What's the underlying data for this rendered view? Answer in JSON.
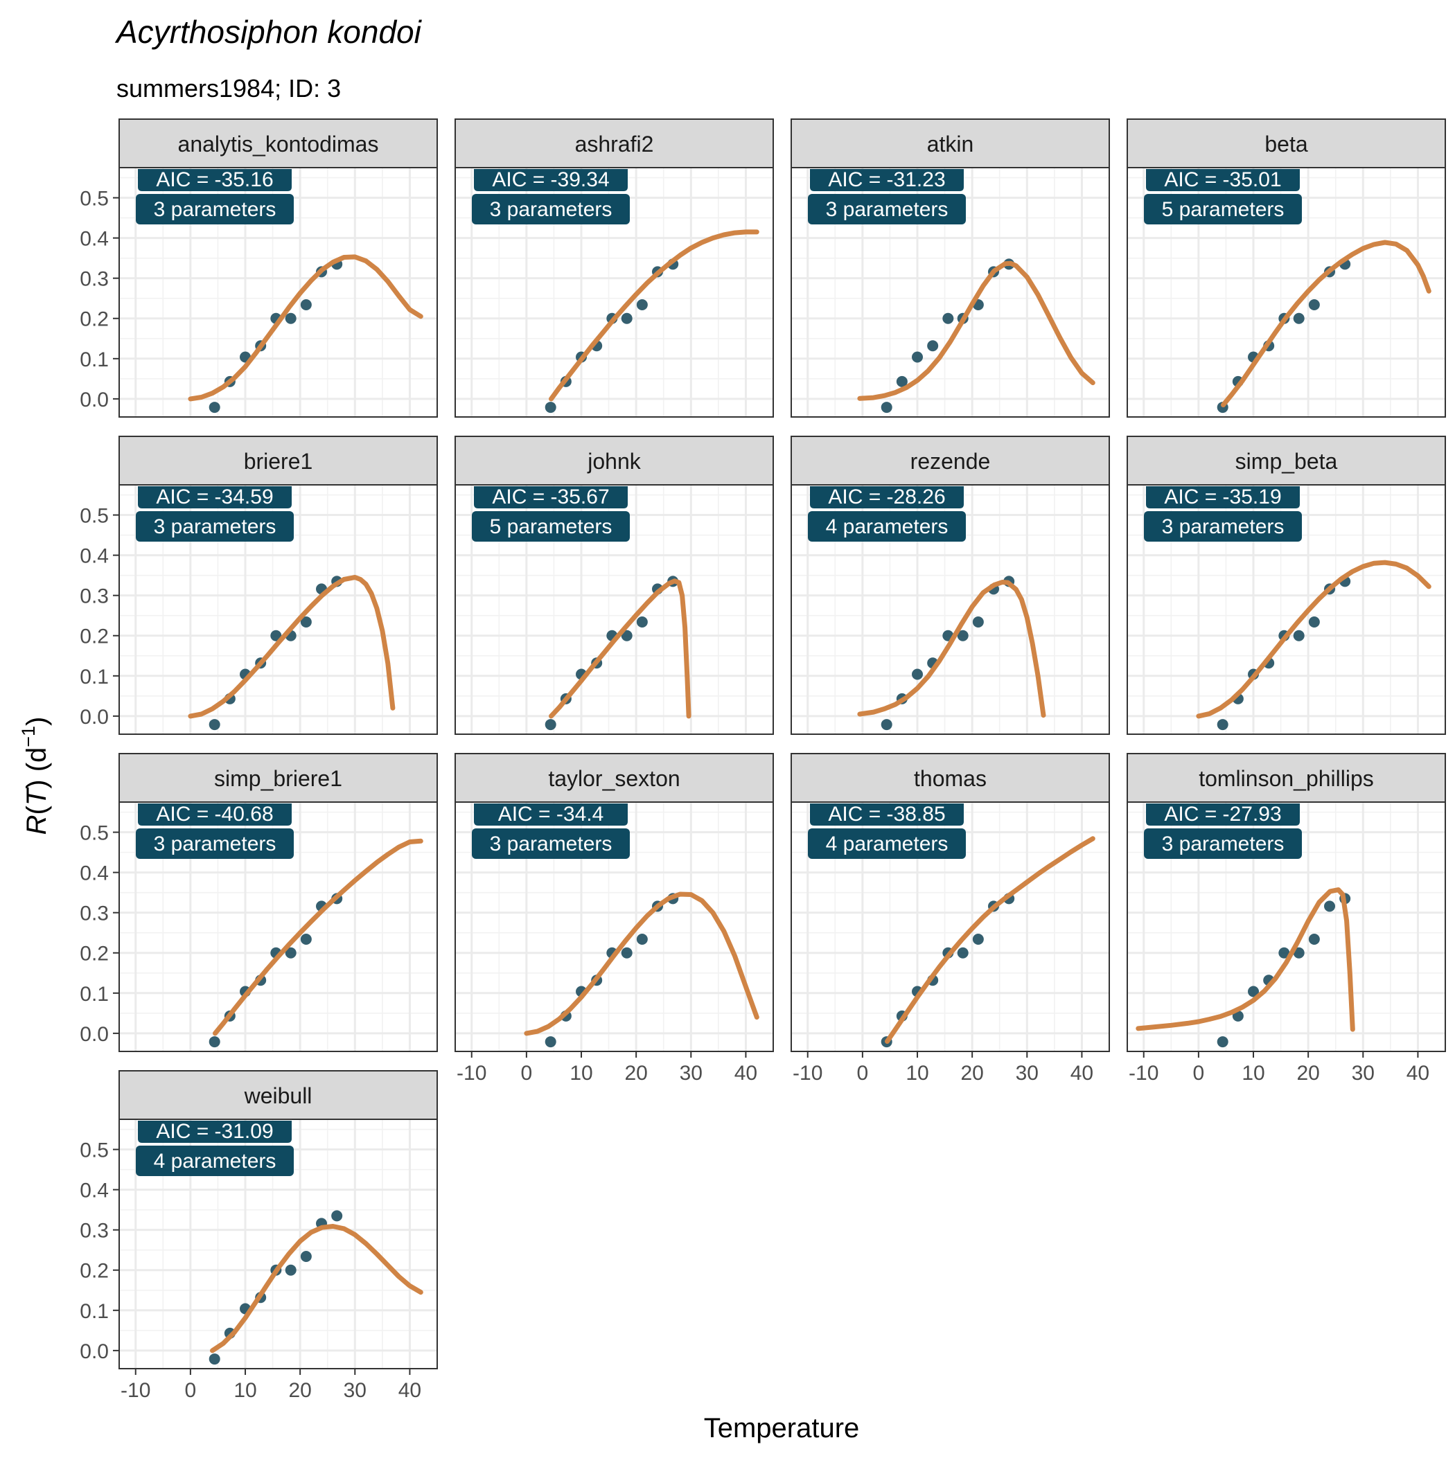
{
  "chart_data": {
    "type": "scatter",
    "title": "Acyrthosiphon kondoi",
    "subtitle": "summers1984; ID: 3",
    "xlabel": "Temperature",
    "ylabel_var": "R",
    "ylabel_arg": "T",
    "ylabel_unit": "d",
    "ylabel_exp": "−1",
    "xlim": [
      -13,
      45
    ],
    "ylim": [
      -0.045,
      0.575
    ],
    "x_ticks": [
      "-10",
      "0",
      "10",
      "20",
      "30",
      "40"
    ],
    "y_ticks": [
      "0.0",
      "0.1",
      "0.2",
      "0.3",
      "0.4",
      "0.5"
    ],
    "grid": true,
    "colors": {
      "point": "#1f4e5f",
      "curve": "#d08445",
      "label_bg": "#0f4a60",
      "strip_bg": "#d9d9d9"
    },
    "points": [
      {
        "x": 4.4,
        "y": -0.021
      },
      {
        "x": 7.2,
        "y": 0.043
      },
      {
        "x": 10.0,
        "y": 0.104
      },
      {
        "x": 12.8,
        "y": 0.132
      },
      {
        "x": 15.6,
        "y": 0.2
      },
      {
        "x": 18.3,
        "y": 0.2
      },
      {
        "x": 21.1,
        "y": 0.234
      },
      {
        "x": 23.9,
        "y": 0.316
      },
      {
        "x": 26.7,
        "y": 0.335
      }
    ],
    "panels": [
      {
        "name": "analytis_kontodimas",
        "aic": "AIC = -35.16",
        "params": "3 parameters",
        "curve": [
          [
            0,
            0
          ],
          [
            2,
            0.004
          ],
          [
            4,
            0.014
          ],
          [
            6,
            0.03
          ],
          [
            8,
            0.052
          ],
          [
            10,
            0.08
          ],
          [
            12,
            0.115
          ],
          [
            14,
            0.153
          ],
          [
            16,
            0.19
          ],
          [
            18,
            0.228
          ],
          [
            20,
            0.263
          ],
          [
            22,
            0.294
          ],
          [
            24,
            0.321
          ],
          [
            26,
            0.34
          ],
          [
            28,
            0.352
          ],
          [
            30,
            0.353
          ],
          [
            32,
            0.343
          ],
          [
            34,
            0.322
          ],
          [
            36,
            0.292
          ],
          [
            38,
            0.256
          ],
          [
            40,
            0.222
          ],
          [
            42,
            0.205
          ]
        ]
      },
      {
        "name": "ashrafi2",
        "aic": "AIC = -39.34",
        "params": "3 parameters",
        "curve": [
          [
            4.5,
            0.0
          ],
          [
            6,
            0.028
          ],
          [
            8,
            0.063
          ],
          [
            10,
            0.098
          ],
          [
            12,
            0.133
          ],
          [
            14,
            0.166
          ],
          [
            16,
            0.199
          ],
          [
            18,
            0.23
          ],
          [
            20,
            0.26
          ],
          [
            22,
            0.288
          ],
          [
            24,
            0.313
          ],
          [
            26,
            0.336
          ],
          [
            28,
            0.357
          ],
          [
            30,
            0.375
          ],
          [
            32,
            0.389
          ],
          [
            34,
            0.4
          ],
          [
            36,
            0.408
          ],
          [
            38,
            0.413
          ],
          [
            40,
            0.415
          ],
          [
            42,
            0.415
          ]
        ]
      },
      {
        "name": "atkin",
        "aic": "AIC = -31.23",
        "params": "3 parameters",
        "curve": [
          [
            -0.5,
            0.001
          ],
          [
            2,
            0.003
          ],
          [
            4,
            0.008
          ],
          [
            6,
            0.016
          ],
          [
            8,
            0.028
          ],
          [
            10,
            0.046
          ],
          [
            12,
            0.07
          ],
          [
            14,
            0.102
          ],
          [
            16,
            0.142
          ],
          [
            18,
            0.188
          ],
          [
            20,
            0.236
          ],
          [
            22,
            0.281
          ],
          [
            24,
            0.318
          ],
          [
            26,
            0.336
          ],
          [
            27,
            0.337
          ],
          [
            28,
            0.331
          ],
          [
            30,
            0.303
          ],
          [
            32,
            0.259
          ],
          [
            34,
            0.206
          ],
          [
            36,
            0.152
          ],
          [
            38,
            0.103
          ],
          [
            40,
            0.064
          ],
          [
            42,
            0.04
          ]
        ]
      },
      {
        "name": "beta",
        "aic": "AIC = -35.01",
        "params": "5 parameters",
        "curve": [
          [
            4.5,
            -0.015
          ],
          [
            6,
            0.01
          ],
          [
            8,
            0.045
          ],
          [
            10,
            0.085
          ],
          [
            12,
            0.125
          ],
          [
            14,
            0.165
          ],
          [
            16,
            0.203
          ],
          [
            18,
            0.237
          ],
          [
            20,
            0.268
          ],
          [
            22,
            0.296
          ],
          [
            24,
            0.32
          ],
          [
            26,
            0.341
          ],
          [
            28,
            0.359
          ],
          [
            30,
            0.374
          ],
          [
            32,
            0.384
          ],
          [
            34,
            0.389
          ],
          [
            36,
            0.385
          ],
          [
            38,
            0.369
          ],
          [
            40,
            0.333
          ],
          [
            41,
            0.305
          ],
          [
            42,
            0.268
          ]
        ]
      },
      {
        "name": "briere1",
        "aic": "AIC = -34.59",
        "params": "3 parameters",
        "curve": [
          [
            0,
            0
          ],
          [
            2,
            0.005
          ],
          [
            4,
            0.018
          ],
          [
            6,
            0.037
          ],
          [
            8,
            0.061
          ],
          [
            10,
            0.089
          ],
          [
            12,
            0.119
          ],
          [
            14,
            0.15
          ],
          [
            16,
            0.182
          ],
          [
            18,
            0.213
          ],
          [
            20,
            0.244
          ],
          [
            22,
            0.273
          ],
          [
            24,
            0.3
          ],
          [
            26,
            0.323
          ],
          [
            28,
            0.34
          ],
          [
            30,
            0.345
          ],
          [
            31,
            0.34
          ],
          [
            32,
            0.328
          ],
          [
            33,
            0.305
          ],
          [
            34,
            0.268
          ],
          [
            35,
            0.212
          ],
          [
            36,
            0.131
          ],
          [
            36.5,
            0.07
          ],
          [
            36.9,
            0.02
          ]
        ]
      },
      {
        "name": "johnk",
        "aic": "AIC = -35.67",
        "params": "5 parameters",
        "curve": [
          [
            4.5,
            0.0
          ],
          [
            6,
            0.022
          ],
          [
            8,
            0.055
          ],
          [
            10,
            0.088
          ],
          [
            12,
            0.122
          ],
          [
            14,
            0.155
          ],
          [
            16,
            0.188
          ],
          [
            18,
            0.22
          ],
          [
            20,
            0.251
          ],
          [
            22,
            0.281
          ],
          [
            24,
            0.309
          ],
          [
            26,
            0.33
          ],
          [
            27,
            0.336
          ],
          [
            27.8,
            0.332
          ],
          [
            28.4,
            0.3
          ],
          [
            28.9,
            0.22
          ],
          [
            29.3,
            0.1
          ],
          [
            29.6,
            0.0
          ]
        ]
      },
      {
        "name": "rezende",
        "aic": "AIC = -28.26",
        "params": "4 parameters",
        "curve": [
          [
            -0.5,
            0.005
          ],
          [
            2,
            0.01
          ],
          [
            4,
            0.018
          ],
          [
            6,
            0.029
          ],
          [
            8,
            0.046
          ],
          [
            10,
            0.069
          ],
          [
            12,
            0.099
          ],
          [
            14,
            0.137
          ],
          [
            16,
            0.181
          ],
          [
            18,
            0.228
          ],
          [
            20,
            0.272
          ],
          [
            22,
            0.307
          ],
          [
            24,
            0.326
          ],
          [
            25.5,
            0.333
          ],
          [
            26.5,
            0.332
          ],
          [
            28,
            0.315
          ],
          [
            29,
            0.29
          ],
          [
            30,
            0.245
          ],
          [
            31,
            0.18
          ],
          [
            32,
            0.1
          ],
          [
            33,
            0.002
          ]
        ]
      },
      {
        "name": "simp_beta",
        "aic": "AIC = -35.19",
        "params": "3 parameters",
        "curve": [
          [
            0,
            0
          ],
          [
            2,
            0.006
          ],
          [
            4,
            0.02
          ],
          [
            6,
            0.04
          ],
          [
            8,
            0.066
          ],
          [
            10,
            0.097
          ],
          [
            12,
            0.131
          ],
          [
            14,
            0.165
          ],
          [
            16,
            0.199
          ],
          [
            18,
            0.232
          ],
          [
            20,
            0.263
          ],
          [
            22,
            0.292
          ],
          [
            24,
            0.318
          ],
          [
            26,
            0.341
          ],
          [
            28,
            0.359
          ],
          [
            30,
            0.372
          ],
          [
            32,
            0.38
          ],
          [
            34,
            0.382
          ],
          [
            36,
            0.378
          ],
          [
            38,
            0.368
          ],
          [
            40,
            0.349
          ],
          [
            42,
            0.322
          ]
        ]
      },
      {
        "name": "simp_briere1",
        "aic": "AIC = -40.68",
        "params": "3 parameters",
        "curve": [
          [
            4.5,
            0.0
          ],
          [
            6,
            0.025
          ],
          [
            8,
            0.06
          ],
          [
            10,
            0.094
          ],
          [
            12,
            0.127
          ],
          [
            14,
            0.16
          ],
          [
            16,
            0.191
          ],
          [
            18,
            0.221
          ],
          [
            20,
            0.25
          ],
          [
            22,
            0.278
          ],
          [
            24,
            0.305
          ],
          [
            26,
            0.331
          ],
          [
            28,
            0.356
          ],
          [
            30,
            0.38
          ],
          [
            32,
            0.403
          ],
          [
            34,
            0.425
          ],
          [
            36,
            0.445
          ],
          [
            38,
            0.463
          ],
          [
            40,
            0.476
          ],
          [
            42,
            0.478
          ]
        ]
      },
      {
        "name": "taylor_sexton",
        "aic": "AIC = -34.4",
        "params": "3 parameters",
        "curve": [
          [
            0,
            0
          ],
          [
            2,
            0.005
          ],
          [
            4,
            0.017
          ],
          [
            6,
            0.036
          ],
          [
            8,
            0.061
          ],
          [
            10,
            0.09
          ],
          [
            12,
            0.123
          ],
          [
            14,
            0.158
          ],
          [
            16,
            0.194
          ],
          [
            18,
            0.229
          ],
          [
            20,
            0.262
          ],
          [
            22,
            0.292
          ],
          [
            24,
            0.317
          ],
          [
            26,
            0.336
          ],
          [
            28,
            0.346
          ],
          [
            30,
            0.345
          ],
          [
            32,
            0.33
          ],
          [
            34,
            0.3
          ],
          [
            36,
            0.254
          ],
          [
            38,
            0.192
          ],
          [
            40,
            0.116
          ],
          [
            42,
            0.04
          ]
        ]
      },
      {
        "name": "thomas",
        "aic": "AIC = -38.85",
        "params": "4 parameters",
        "curve": [
          [
            4.5,
            -0.02
          ],
          [
            6,
            0.01
          ],
          [
            8,
            0.05
          ],
          [
            10,
            0.09
          ],
          [
            12,
            0.128
          ],
          [
            14,
            0.165
          ],
          [
            16,
            0.199
          ],
          [
            18,
            0.231
          ],
          [
            20,
            0.261
          ],
          [
            22,
            0.289
          ],
          [
            24,
            0.314
          ],
          [
            26,
            0.336
          ],
          [
            28,
            0.356
          ],
          [
            30,
            0.376
          ],
          [
            32,
            0.396
          ],
          [
            34,
            0.415
          ],
          [
            36,
            0.433
          ],
          [
            38,
            0.451
          ],
          [
            40,
            0.468
          ],
          [
            42,
            0.484
          ]
        ]
      },
      {
        "name": "tomlinson_phillips",
        "aic": "AIC = -27.93",
        "params": "3 parameters",
        "curve": [
          [
            -11,
            0.012
          ],
          [
            -8,
            0.016
          ],
          [
            -5,
            0.02
          ],
          [
            -2,
            0.025
          ],
          [
            0,
            0.029
          ],
          [
            2,
            0.035
          ],
          [
            4,
            0.042
          ],
          [
            6,
            0.052
          ],
          [
            8,
            0.065
          ],
          [
            10,
            0.082
          ],
          [
            12,
            0.105
          ],
          [
            14,
            0.136
          ],
          [
            16,
            0.176
          ],
          [
            18,
            0.225
          ],
          [
            20,
            0.279
          ],
          [
            22,
            0.326
          ],
          [
            24,
            0.353
          ],
          [
            25.5,
            0.357
          ],
          [
            26.3,
            0.345
          ],
          [
            27,
            0.28
          ],
          [
            27.6,
            0.15
          ],
          [
            28.1,
            0.01
          ]
        ]
      },
      {
        "name": "weibull",
        "aic": "AIC = -31.09",
        "params": "4 parameters",
        "curve": [
          [
            4,
            0.0
          ],
          [
            6,
            0.018
          ],
          [
            8,
            0.045
          ],
          [
            10,
            0.081
          ],
          [
            12,
            0.122
          ],
          [
            14,
            0.164
          ],
          [
            16,
            0.205
          ],
          [
            18,
            0.241
          ],
          [
            20,
            0.272
          ],
          [
            22,
            0.294
          ],
          [
            24,
            0.306
          ],
          [
            26,
            0.309
          ],
          [
            28,
            0.303
          ],
          [
            30,
            0.288
          ],
          [
            32,
            0.266
          ],
          [
            34,
            0.24
          ],
          [
            36,
            0.212
          ],
          [
            38,
            0.184
          ],
          [
            40,
            0.161
          ],
          [
            42,
            0.145
          ]
        ]
      }
    ]
  }
}
